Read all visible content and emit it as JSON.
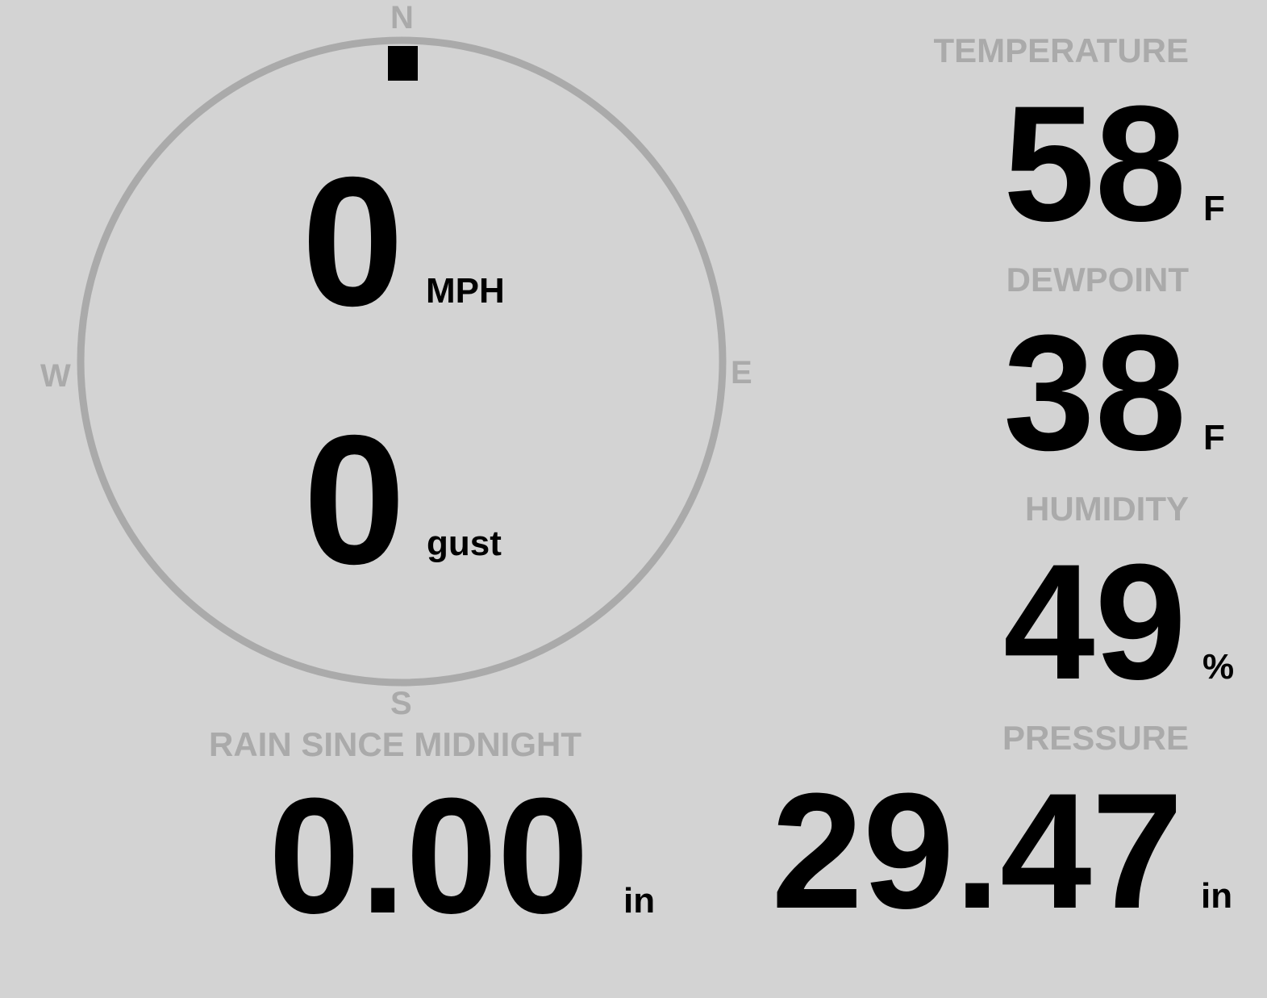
{
  "wind": {
    "compass": {
      "n": "N",
      "e": "E",
      "s": "S",
      "w": "W"
    },
    "direction_deg": 0,
    "speed": "0",
    "speed_unit": "MPH",
    "gust": "0",
    "gust_unit": "gust",
    "ring_color": "#aaaaaa",
    "needle_color": "#000000"
  },
  "temperature": {
    "label": "TEMPERATURE",
    "value": "58",
    "unit": "F"
  },
  "dewpoint": {
    "label": "DEWPOINT",
    "value": "38",
    "unit": "F"
  },
  "humidity": {
    "label": "HUMIDITY",
    "value": "49",
    "unit": "%"
  },
  "pressure": {
    "label": "PRESSURE",
    "value": "29.47",
    "unit": "in"
  },
  "rain": {
    "label": "RAIN SINCE MIDNIGHT",
    "value": "0.00",
    "unit": "in"
  },
  "colors": {
    "background": "#d3d3d3",
    "label": "#aaaaaa",
    "value": "#000000"
  }
}
